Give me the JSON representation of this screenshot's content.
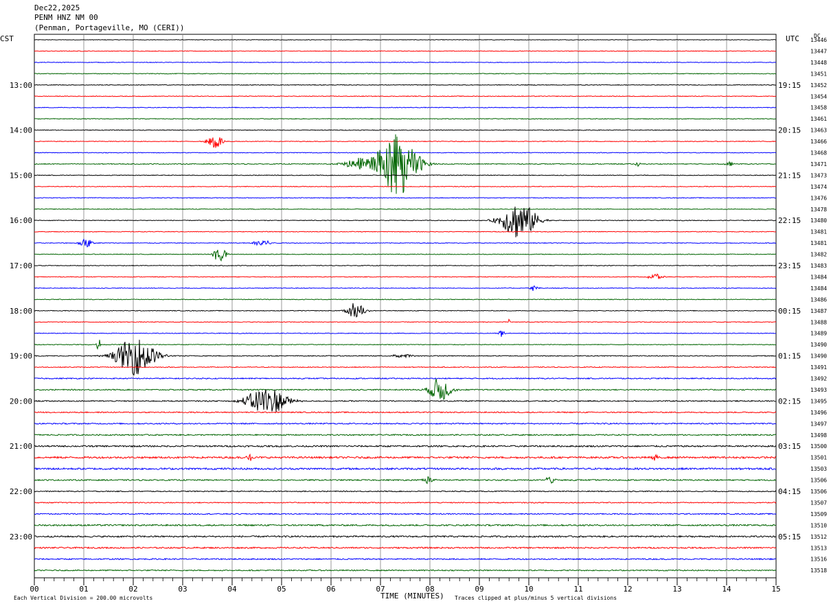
{
  "header": {
    "date": "Dec22,2025",
    "station": "PENM HNZ NM 00",
    "location": "(Penman, Portageville, MO (CERI))"
  },
  "axis_labels": {
    "left_tz": "CST",
    "right_tz": "UTC",
    "dc": "DC",
    "xlabel": "TIME (MINUTES)",
    "footer_left": "Each Vertical Division =  200.00 microvolts",
    "footer_right": "Traces clipped at plus/minus 5 vertical divisions"
  },
  "colors": {
    "cycle": [
      "#000000",
      "#ff0000",
      "#0000ff",
      "#006400"
    ],
    "grid": "#808080"
  },
  "chart_data": {
    "type": "line",
    "title": "PENM HNZ NM 00",
    "xlabel": "TIME (MINUTES)",
    "xlim": [
      0,
      15
    ],
    "x_ticks": [
      "00",
      "01",
      "02",
      "03",
      "04",
      "05",
      "06",
      "07",
      "08",
      "09",
      "10",
      "11",
      "12",
      "13",
      "14",
      "15"
    ],
    "trace_count": 48,
    "left_hour_labels": [
      "13:00",
      "14:00",
      "15:00",
      "16:00",
      "17:00",
      "18:00",
      "19:00",
      "20:00",
      "21:00",
      "22:00",
      "23:00"
    ],
    "right_hour_labels": [
      "19:15",
      "20:15",
      "21:15",
      "22:15",
      "23:15",
      "00:15",
      "01:15",
      "02:15",
      "03:15",
      "04:15",
      "05:15"
    ],
    "hour_label_first_trace": 4,
    "hour_label_every": 4,
    "dc_offsets": [
      "13446",
      "13447",
      "13448",
      "13451",
      "13452",
      "13454",
      "13458",
      "13461",
      "13463",
      "13466",
      "13468",
      "13471",
      "13473",
      "13474",
      "13476",
      "13478",
      "13480",
      "13481",
      "13481",
      "13482",
      "13483",
      "13484",
      "13484",
      "13486",
      "13487",
      "13488",
      "13489",
      "13490",
      "13490",
      "13491",
      "13492",
      "13493",
      "13495",
      "13496",
      "13497",
      "13498",
      "13500",
      "13501",
      "13503",
      "13506",
      "13506",
      "13507",
      "13509",
      "13510",
      "13512",
      "13513",
      "13516",
      "13518"
    ],
    "noise_level": [
      0.4,
      0.45,
      0.45,
      0.5,
      0.5,
      0.5,
      0.5,
      0.5,
      0.5,
      0.5,
      0.5,
      0.6,
      0.5,
      0.5,
      0.5,
      0.5,
      0.5,
      0.5,
      0.5,
      0.5,
      0.5,
      0.5,
      0.5,
      0.5,
      0.5,
      0.5,
      0.5,
      0.5,
      0.6,
      0.6,
      0.8,
      0.8,
      0.8,
      0.8,
      0.9,
      0.9,
      1.1,
      1.3,
      1.3,
      0.9,
      0.7,
      0.7,
      0.8,
      1.1,
      1.1,
      1.0,
      0.9,
      0.8
    ],
    "events": [
      {
        "trace": 9,
        "minute": 3.65,
        "amplitude": 12,
        "duration": 0.35
      },
      {
        "trace": 11,
        "minute": 7.35,
        "amplitude": 48,
        "duration": 0.9
      },
      {
        "trace": 11,
        "minute": 6.7,
        "amplitude": 10,
        "duration": 0.9
      },
      {
        "trace": 11,
        "minute": 12.2,
        "amplitude": 4,
        "duration": 0.1
      },
      {
        "trace": 11,
        "minute": 14.05,
        "amplitude": 4,
        "duration": 0.2
      },
      {
        "trace": 16,
        "minute": 9.8,
        "amplitude": 28,
        "duration": 0.8
      },
      {
        "trace": 18,
        "minute": 1.05,
        "amplitude": 7,
        "duration": 0.3
      },
      {
        "trace": 18,
        "minute": 4.6,
        "amplitude": 7,
        "duration": 0.35
      },
      {
        "trace": 19,
        "minute": 3.75,
        "amplitude": 12,
        "duration": 0.3
      },
      {
        "trace": 21,
        "minute": 12.55,
        "amplitude": 6,
        "duration": 0.3
      },
      {
        "trace": 22,
        "minute": 10.1,
        "amplitude": 4,
        "duration": 0.2
      },
      {
        "trace": 24,
        "minute": 6.5,
        "amplitude": 12,
        "duration": 0.4
      },
      {
        "trace": 25,
        "minute": 9.6,
        "amplitude": 4,
        "duration": 0.05
      },
      {
        "trace": 26,
        "minute": 9.45,
        "amplitude": 5,
        "duration": 0.15
      },
      {
        "trace": 27,
        "minute": 1.3,
        "amplitude": 10,
        "duration": 0.1
      },
      {
        "trace": 28,
        "minute": 2.05,
        "amplitude": 28,
        "duration": 0.9
      },
      {
        "trace": 28,
        "minute": 7.45,
        "amplitude": 3,
        "duration": 0.5
      },
      {
        "trace": 31,
        "minute": 8.2,
        "amplitude": 18,
        "duration": 0.5
      },
      {
        "trace": 32,
        "minute": 4.7,
        "amplitude": 22,
        "duration": 0.9
      },
      {
        "trace": 37,
        "minute": 4.35,
        "amplitude": 6,
        "duration": 0.15
      },
      {
        "trace": 37,
        "minute": 12.55,
        "amplitude": 8,
        "duration": 0.1
      },
      {
        "trace": 39,
        "minute": 7.95,
        "amplitude": 6,
        "duration": 0.25
      },
      {
        "trace": 39,
        "minute": 10.45,
        "amplitude": 7,
        "duration": 0.25
      }
    ]
  }
}
